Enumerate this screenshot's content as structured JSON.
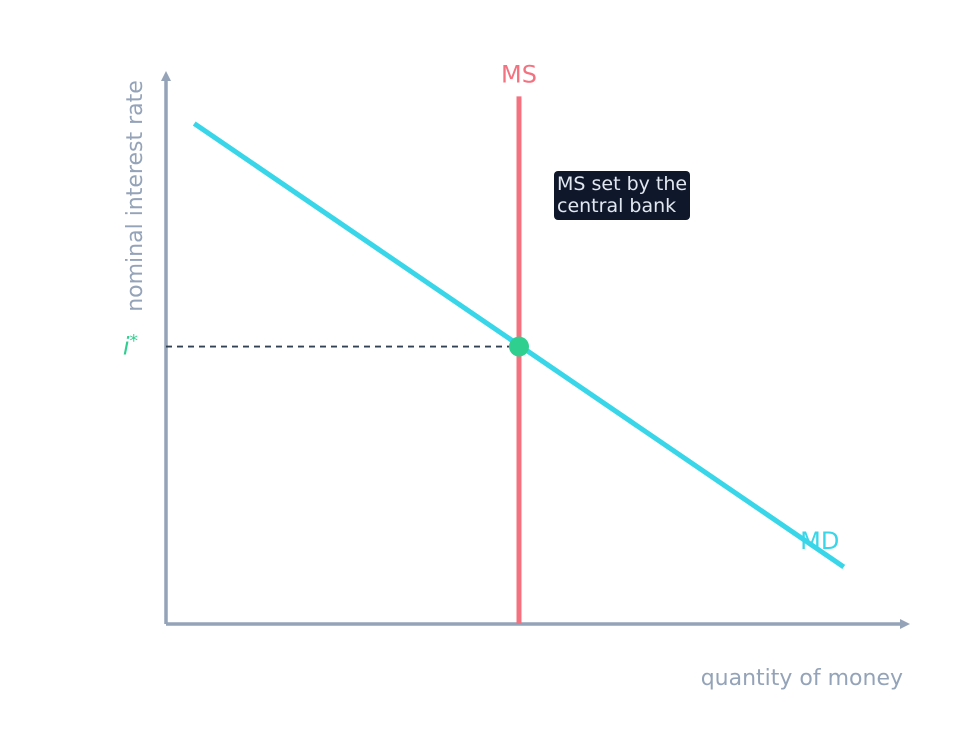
{
  "colors": {
    "axis": "#94a3b8",
    "supply": "#f4717f",
    "demand": "#38d6e8",
    "equilibrium": "#2fcf8f",
    "guide": "#334155",
    "annotation_bg": "#0f172a",
    "annotation_text": "#e2e8f0"
  },
  "chart_data": {
    "type": "line",
    "title": "",
    "xlabel": "quantity of money",
    "ylabel": "nominal interest rate",
    "xlim": [
      0,
      10
    ],
    "ylim": [
      0,
      10
    ],
    "ticks": "none",
    "grid": false,
    "series": [
      {
        "name": "MS",
        "kind": "vertical",
        "x": [
          5,
          5
        ],
        "y": [
          0,
          9.7
        ]
      },
      {
        "name": "MD",
        "kind": "downward-sloping",
        "x": [
          0.4,
          9.6
        ],
        "y": [
          9.2,
          1.05
        ]
      }
    ],
    "equilibrium": {
      "label": "i*",
      "label_base": "i",
      "label_sup": "*",
      "x": 5,
      "y": 5.1
    },
    "annotations": [
      {
        "lines": [
          "MS set by the",
          "central bank"
        ],
        "anchor": "right of MS line"
      }
    ]
  }
}
